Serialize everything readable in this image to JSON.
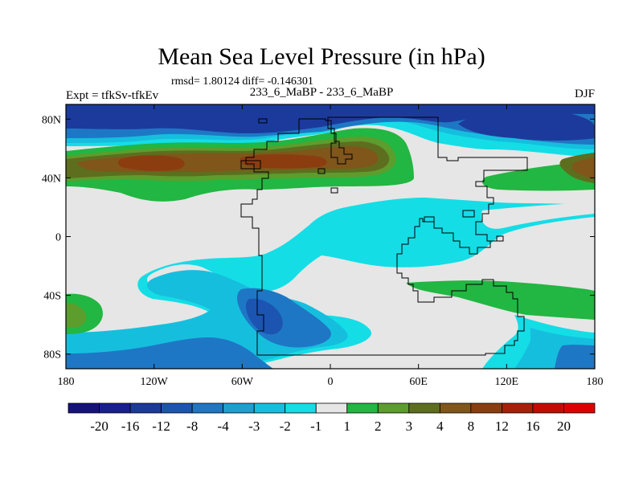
{
  "title": "Mean Sea Level Pressure (in hPa)",
  "stats": "rmsd= 1.80124 diff= -0.146301",
  "left_label": "Expt = tfkSv-tfkEv",
  "center_label": "233_6_MaBP - 233_6_MaBP",
  "right_label": "DJF",
  "chart_data": {
    "type": "heatmap",
    "title": "Mean Sea Level Pressure (in hPa)",
    "xlabel": "",
    "ylabel": "",
    "xlim": [
      -180,
      180
    ],
    "ylim": [
      -90,
      90
    ],
    "x_ticks": [
      {
        "value": -180,
        "label": "180"
      },
      {
        "value": -120,
        "label": "120W"
      },
      {
        "value": -60,
        "label": "60W"
      },
      {
        "value": 0,
        "label": "0"
      },
      {
        "value": 60,
        "label": "60E"
      },
      {
        "value": 120,
        "label": "120E"
      },
      {
        "value": 180,
        "label": "180"
      }
    ],
    "y_ticks": [
      {
        "value": 80,
        "label": "80N"
      },
      {
        "value": 40,
        "label": "40N"
      },
      {
        "value": 0,
        "label": "0"
      },
      {
        "value": -40,
        "label": "40S"
      },
      {
        "value": -80,
        "label": "80S"
      }
    ],
    "legend": {
      "placement": "bottom",
      "levels": [
        "-20",
        "-16",
        "-12",
        "-8",
        "-4",
        "-3",
        "-2",
        "-1",
        "1",
        "2",
        "3",
        "4",
        "8",
        "12",
        "16",
        "20"
      ],
      "colors": [
        "#15127e",
        "#18208f",
        "#1c3a9c",
        "#1b55b1",
        "#1e77c5",
        "#1d9fd4",
        "#16bede",
        "#14dde6",
        "#e6e6e6",
        "#22b642",
        "#5c9d2d",
        "#5e6e1f",
        "#80561a",
        "#8b3d10",
        "#a82008",
        "#c20d02",
        "#de0000"
      ]
    },
    "field_regions": [
      {
        "lon": -60,
        "lat": 80,
        "value": -8
      },
      {
        "lon": 140,
        "lat": 80,
        "value": -8
      },
      {
        "lon": -150,
        "lat": 45,
        "value": 12
      },
      {
        "lon": -20,
        "lat": 48,
        "value": 8
      },
      {
        "lon": 170,
        "lat": 45,
        "value": 8
      },
      {
        "lon": 30,
        "lat": 5,
        "value": -1
      },
      {
        "lon": -40,
        "lat": -55,
        "value": -4
      },
      {
        "lon": -160,
        "lat": -52,
        "value": 2
      },
      {
        "lon": 120,
        "lat": -40,
        "value": 2
      },
      {
        "lon": 0,
        "lat": 15,
        "value": 1
      }
    ]
  }
}
